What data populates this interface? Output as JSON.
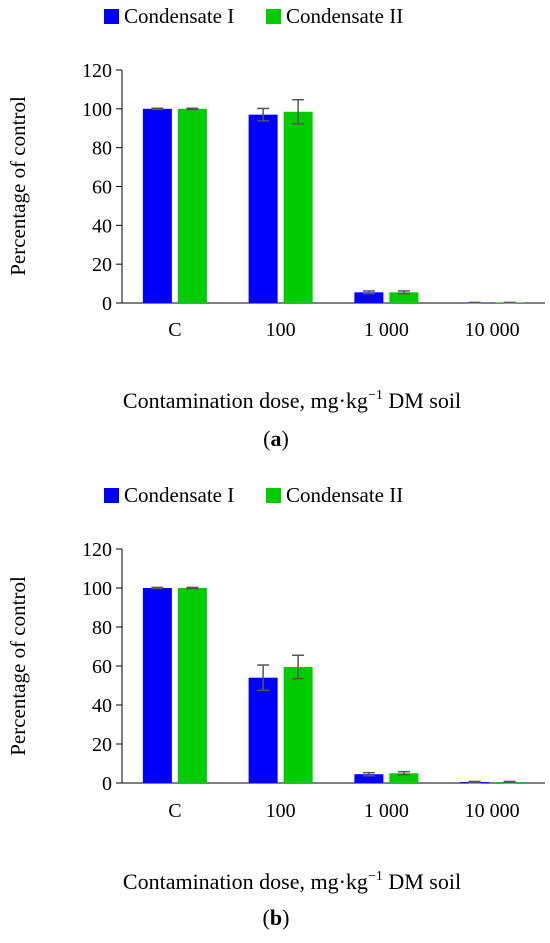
{
  "chart_data": [
    {
      "type": "bar",
      "panel_label": "a",
      "xlabel": "Contamination dose, mg·kg",
      "xlabel_sup": "−1",
      "xlabel_suffix": " DM soil",
      "ylabel": "Percentage of control",
      "ylim": [
        0,
        120
      ],
      "yticks": [
        "0",
        "20",
        "40",
        "60",
        "80",
        "100",
        "120"
      ],
      "categories": [
        "C",
        "100",
        "1 000",
        "10 000"
      ],
      "legend_position": "top",
      "grid": false,
      "series": [
        {
          "name": "Condensate I",
          "color": "#0000ff",
          "values": [
            100,
            97,
            5.5,
            0.2
          ],
          "errors": [
            0.3,
            3.2,
            0.7,
            0.1
          ]
        },
        {
          "name": "Condensate II",
          "color": "#00cc00",
          "values": [
            100,
            98.5,
            5.5,
            0.2
          ],
          "errors": [
            0.3,
            6.2,
            0.7,
            0.1
          ]
        }
      ]
    },
    {
      "type": "bar",
      "panel_label": "b",
      "xlabel": "Contamination dose, mg·kg",
      "xlabel_sup": "−1",
      "xlabel_suffix": " DM soil",
      "ylabel": "Percentage of control",
      "ylim": [
        0,
        120
      ],
      "yticks": [
        "0",
        "20",
        "40",
        "60",
        "80",
        "100",
        "120"
      ],
      "categories": [
        "C",
        "100",
        "1 000",
        "10 000"
      ],
      "legend_position": "top",
      "grid": false,
      "series": [
        {
          "name": "Condensate I",
          "color": "#0000ff",
          "values": [
            100,
            54,
            4.5,
            0.5
          ],
          "errors": [
            0.3,
            6.5,
            0.8,
            0.3
          ]
        },
        {
          "name": "Condensate II",
          "color": "#00cc00",
          "values": [
            100,
            59.5,
            5.0,
            0.5
          ],
          "errors": [
            0.3,
            6.0,
            0.8,
            0.3
          ]
        }
      ]
    }
  ]
}
